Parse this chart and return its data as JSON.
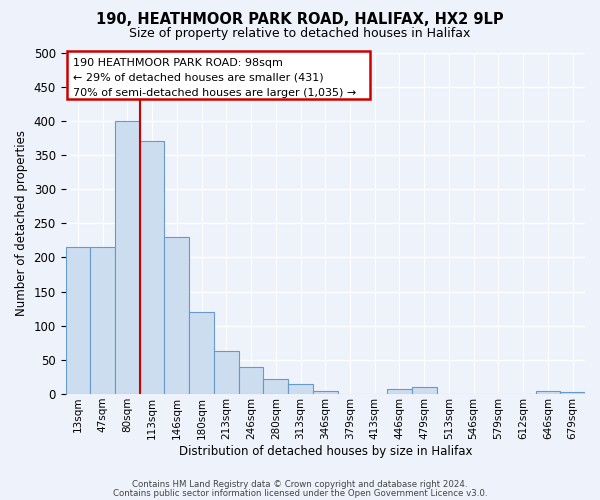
{
  "title": "190, HEATHMOOR PARK ROAD, HALIFAX, HX2 9LP",
  "subtitle": "Size of property relative to detached houses in Halifax",
  "xlabel": "Distribution of detached houses by size in Halifax",
  "ylabel": "Number of detached properties",
  "bar_labels": [
    "13sqm",
    "47sqm",
    "80sqm",
    "113sqm",
    "146sqm",
    "180sqm",
    "213sqm",
    "246sqm",
    "280sqm",
    "313sqm",
    "346sqm",
    "379sqm",
    "413sqm",
    "446sqm",
    "479sqm",
    "513sqm",
    "546sqm",
    "579sqm",
    "612sqm",
    "646sqm",
    "679sqm"
  ],
  "bar_values": [
    215,
    215,
    400,
    370,
    230,
    120,
    63,
    40,
    22,
    15,
    5,
    0,
    0,
    8,
    10,
    0,
    0,
    0,
    0,
    5,
    3
  ],
  "bar_color": "#ccddf0",
  "bar_edge_color": "#6699cc",
  "vline_x_idx": 2,
  "vline_color": "#cc0000",
  "annotation_lines": [
    "190 HEATHMOOR PARK ROAD: 98sqm",
    "← 29% of detached houses are smaller (431)",
    "70% of semi-detached houses are larger (1,035) →"
  ],
  "ylim": [
    0,
    500
  ],
  "yticks": [
    0,
    50,
    100,
    150,
    200,
    250,
    300,
    350,
    400,
    450,
    500
  ],
  "footer1": "Contains HM Land Registry data © Crown copyright and database right 2024.",
  "footer2": "Contains public sector information licensed under the Open Government Licence v3.0.",
  "bg_color": "#eef2fa",
  "grid_color": "#d0d8e8"
}
